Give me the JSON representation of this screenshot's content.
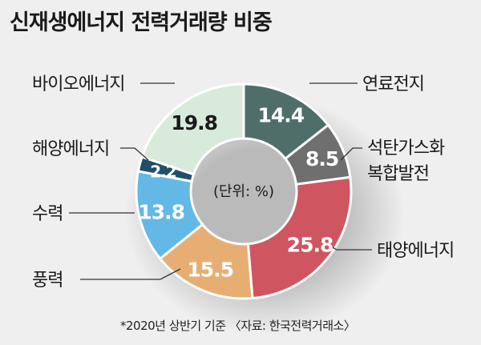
{
  "title": "신재생에너지 전력거래량 비중",
  "footnote": "*2020년 상반기 기준 〈자료: 한국전력거래소〉",
  "chart_data": {
    "type": "pie",
    "title": "신재생에너지 전력거래량 비중",
    "unit_note": "(단위: %)",
    "slices": [
      {
        "label": "연료전지",
        "value": 14.4,
        "color": "#4f6e6a",
        "text_color": "#ffffff"
      },
      {
        "label": "석탄가스화 복합발전",
        "value": 8.5,
        "color": "#6f6f6f",
        "text_color": "#ffffff"
      },
      {
        "label": "태양에너지",
        "value": 25.8,
        "color": "#cf5660",
        "text_color": "#ffffff"
      },
      {
        "label": "풍력",
        "value": 15.5,
        "color": "#e7ae73",
        "text_color": "#ffffff"
      },
      {
        "label": "수력",
        "value": 13.8,
        "color": "#63b8e6",
        "text_color": "#ffffff"
      },
      {
        "label": "해양에너지",
        "value": 2.2,
        "color": "#1f4f6a",
        "text_color": "#ffffff"
      },
      {
        "label": "바이오에너지",
        "value": 19.8,
        "color": "#d8ead9",
        "text_color": "#1a1a1a"
      }
    ]
  }
}
